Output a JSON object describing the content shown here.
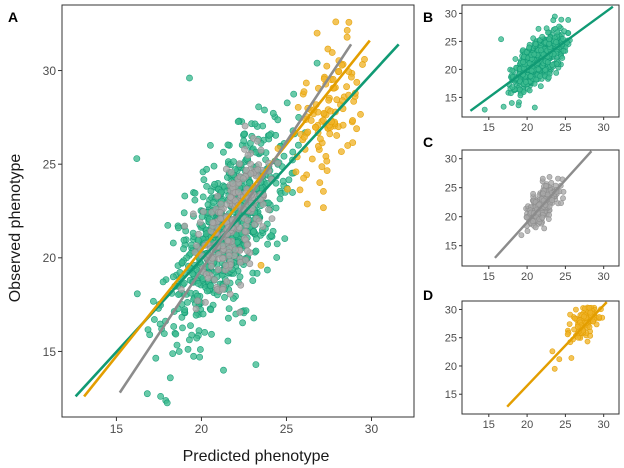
{
  "colors": {
    "green": "#109a74",
    "green_fill": "#3dbb8f",
    "gray": "#8c8c8c",
    "gray_fill": "#a8a8a8",
    "orange": "#e39e00",
    "orange_fill": "#f0b429",
    "frame": "#333333"
  },
  "chart_data": [
    {
      "panel": "A",
      "type": "scatter",
      "xlabel": "Predicted phenotype",
      "ylabel": "Observed phenotype",
      "xlim": [
        11.8,
        32.5
      ],
      "ylim": [
        11.5,
        33.5
      ],
      "xticks": [
        15,
        20,
        25,
        30
      ],
      "yticks": [
        15,
        20,
        25,
        30
      ],
      "series": [
        {
          "name": "green",
          "color_key": "green",
          "n": 700,
          "cx": 21.5,
          "sx": 1.8,
          "slope": 1.0,
          "intercept": 0.0,
          "noise": 2.0,
          "line": {
            "x": [
              12.6,
              31.6
            ],
            "y": [
              12.6,
              31.4
            ]
          },
          "outliers": [
            [
              16.2,
              25.3
            ],
            [
              19.3,
              29.6
            ],
            [
              17.6,
              12.6
            ],
            [
              21.3,
              14.0
            ],
            [
              23.2,
              14.3
            ],
            [
              20.1,
              17.0
            ],
            [
              26.8,
              30.4
            ]
          ]
        },
        {
          "name": "gray",
          "color_key": "gray",
          "n": 220,
          "cx": 22.0,
          "sx": 1.0,
          "slope": 1.0,
          "intercept": 0.2,
          "noise": 1.6,
          "line": {
            "x": [
              15.2,
              28.8
            ],
            "y": [
              12.8,
              31.4
            ]
          },
          "outliers": []
        },
        {
          "name": "orange",
          "color_key": "orange",
          "n": 110,
          "cx": 27.5,
          "sx": 1.1,
          "slope": 1.0,
          "intercept": 0.0,
          "noise": 1.5,
          "line": {
            "x": [
              13.1,
              29.9
            ],
            "y": [
              12.6,
              31.6
            ]
          },
          "outliers": [
            [
              26.8,
              32.0
            ],
            [
              27.9,
              32.6
            ],
            [
              23.5,
              19.6
            ],
            [
              28.6,
              26.0
            ]
          ]
        }
      ]
    },
    {
      "panel": "B",
      "type": "scatter",
      "xlim": [
        11.5,
        32.0
      ],
      "ylim": [
        11.5,
        31.5
      ],
      "xticks": [
        15,
        20,
        25,
        30
      ],
      "yticks": [
        15,
        20,
        25,
        30
      ],
      "series": [
        {
          "name": "green",
          "color_key": "green",
          "n": 700,
          "cx": 21.5,
          "sx": 1.6,
          "slope": 1.0,
          "intercept": 0.0,
          "noise": 1.8,
          "line": {
            "x": [
              12.6,
              31.2
            ],
            "y": [
              12.6,
              31.2
            ]
          },
          "outliers": [
            [
              16.6,
              25.4
            ],
            [
              18.0,
              14.0
            ],
            [
              21.0,
              13.2
            ]
          ]
        }
      ]
    },
    {
      "panel": "C",
      "type": "scatter",
      "xlim": [
        11.5,
        32.0
      ],
      "ylim": [
        11.5,
        31.5
      ],
      "xticks": [
        15,
        20,
        25,
        30
      ],
      "yticks": [
        15,
        20,
        25,
        30
      ],
      "series": [
        {
          "name": "gray",
          "color_key": "gray",
          "n": 220,
          "cx": 21.8,
          "sx": 1.0,
          "slope": 1.0,
          "intercept": 0.0,
          "noise": 1.5,
          "line": {
            "x": [
              15.8,
              28.4
            ],
            "y": [
              12.9,
              31.3
            ]
          },
          "outliers": []
        }
      ]
    },
    {
      "panel": "D",
      "type": "scatter",
      "xlim": [
        11.5,
        32.0
      ],
      "ylim": [
        11.5,
        31.5
      ],
      "xticks": [
        15,
        20,
        25,
        30
      ],
      "yticks": [
        15,
        20,
        25,
        30
      ],
      "series": [
        {
          "name": "orange",
          "color_key": "orange",
          "n": 110,
          "cx": 27.6,
          "sx": 1.0,
          "slope": 1.0,
          "intercept": 0.0,
          "noise": 1.4,
          "line": {
            "x": [
              17.4,
              30.4
            ],
            "y": [
              12.8,
              31.3
            ]
          },
          "outliers": [
            [
              23.6,
              19.5
            ],
            [
              23.3,
              22.6
            ],
            [
              24.2,
              21.2
            ],
            [
              25.3,
              25.6
            ]
          ]
        }
      ]
    }
  ]
}
